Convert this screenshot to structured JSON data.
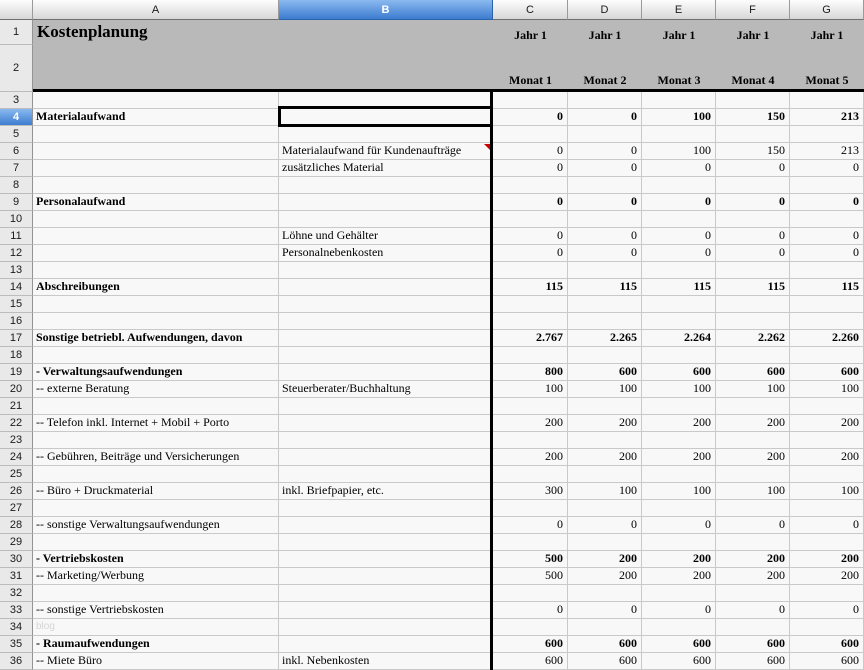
{
  "header": {
    "title": "Kostenplanung",
    "row_numbers": [
      "1",
      "2"
    ],
    "year_labels": [
      "Jahr 1",
      "Jahr 1",
      "Jahr 1",
      "Jahr 1",
      "Jahr 1"
    ],
    "month_labels": [
      "Monat 1",
      "Monat 2",
      "Monat 3",
      "Monat 4",
      "Monat 5"
    ]
  },
  "columns": [
    "A",
    "B",
    "C",
    "D",
    "E",
    "F",
    "G"
  ],
  "selection": {
    "column": "B",
    "row": "4",
    "cell": "B4"
  },
  "colors": {
    "selected_header_blue": "#3d7cd0",
    "title_band_gray": "#b9b9b9",
    "comment_marker_red": "#cc0000",
    "grid_line": "#c9c9c9",
    "cell_background": "#f8f8f8",
    "selection_border": "#000000"
  },
  "grid": {
    "value_columns": [
      "C",
      "D",
      "E",
      "F",
      "G"
    ],
    "rows": [
      {
        "n": "3",
        "a": "",
        "b": "",
        "v": [
          "",
          "",
          "",
          "",
          ""
        ]
      },
      {
        "n": "4",
        "a": "Materialaufwand",
        "bold": true,
        "b": "",
        "v": [
          "0",
          "0",
          "100",
          "150",
          "213"
        ]
      },
      {
        "n": "5",
        "a": "",
        "b": "",
        "v": [
          "",
          "",
          "",
          "",
          ""
        ]
      },
      {
        "n": "6",
        "a": "",
        "b": "Materialaufwand für Kundenaufträge",
        "comment": true,
        "v": [
          "0",
          "0",
          "100",
          "150",
          "213"
        ]
      },
      {
        "n": "7",
        "a": "",
        "b": "zusätzliches Material",
        "v": [
          "0",
          "0",
          "0",
          "0",
          "0"
        ]
      },
      {
        "n": "8",
        "a": "",
        "b": "",
        "v": [
          "",
          "",
          "",
          "",
          ""
        ]
      },
      {
        "n": "9",
        "a": "Personalaufwand",
        "bold": true,
        "b": "",
        "v": [
          "0",
          "0",
          "0",
          "0",
          "0"
        ]
      },
      {
        "n": "10",
        "a": "",
        "b": "",
        "v": [
          "",
          "",
          "",
          "",
          ""
        ]
      },
      {
        "n": "11",
        "a": "",
        "b": "Löhne und Gehälter",
        "v": [
          "0",
          "0",
          "0",
          "0",
          "0"
        ]
      },
      {
        "n": "12",
        "a": "",
        "b": "Personalnebenkosten",
        "v": [
          "0",
          "0",
          "0",
          "0",
          "0"
        ]
      },
      {
        "n": "13",
        "a": "",
        "b": "",
        "v": [
          "",
          "",
          "",
          "",
          ""
        ]
      },
      {
        "n": "14",
        "a": "Abschreibungen",
        "bold": true,
        "b": "",
        "v": [
          "115",
          "115",
          "115",
          "115",
          "115"
        ]
      },
      {
        "n": "15",
        "a": "",
        "b": "",
        "v": [
          "",
          "",
          "",
          "",
          ""
        ]
      },
      {
        "n": "16",
        "a": "",
        "b": "",
        "v": [
          "",
          "",
          "",
          "",
          ""
        ]
      },
      {
        "n": "17",
        "a": "Sonstige betriebl. Aufwendungen, davon",
        "bold": true,
        "b": "",
        "v": [
          "2.767",
          "2.265",
          "2.264",
          "2.262",
          "2.260"
        ]
      },
      {
        "n": "18",
        "a": "",
        "b": "",
        "v": [
          "",
          "",
          "",
          "",
          ""
        ]
      },
      {
        "n": "19",
        "a": "- Verwaltungsaufwendungen",
        "bold": true,
        "b": "",
        "v": [
          "800",
          "600",
          "600",
          "600",
          "600"
        ]
      },
      {
        "n": "20",
        "a": "-- externe Beratung",
        "b": "Steuerberater/Buchhaltung",
        "v": [
          "100",
          "100",
          "100",
          "100",
          "100"
        ]
      },
      {
        "n": "21",
        "a": "",
        "b": "",
        "v": [
          "",
          "",
          "",
          "",
          ""
        ]
      },
      {
        "n": "22",
        "a": "-- Telefon inkl. Internet + Mobil + Porto",
        "b": "",
        "v": [
          "200",
          "200",
          "200",
          "200",
          "200"
        ]
      },
      {
        "n": "23",
        "a": "",
        "b": "",
        "v": [
          "",
          "",
          "",
          "",
          ""
        ]
      },
      {
        "n": "24",
        "a": "-- Gebühren, Beiträge und Versicherungen",
        "b": "",
        "v": [
          "200",
          "200",
          "200",
          "200",
          "200"
        ]
      },
      {
        "n": "25",
        "a": "",
        "b": "",
        "v": [
          "",
          "",
          "",
          "",
          ""
        ]
      },
      {
        "n": "26",
        "a": "-- Büro + Druckmaterial",
        "b": "inkl. Briefpapier, etc.",
        "v": [
          "300",
          "100",
          "100",
          "100",
          "100"
        ]
      },
      {
        "n": "27",
        "a": "",
        "b": "",
        "v": [
          "",
          "",
          "",
          "",
          ""
        ]
      },
      {
        "n": "28",
        "a": "-- sonstige Verwaltungsaufwendungen",
        "b": "",
        "v": [
          "0",
          "0",
          "0",
          "0",
          "0"
        ]
      },
      {
        "n": "29",
        "a": "",
        "b": "",
        "v": [
          "",
          "",
          "",
          "",
          ""
        ]
      },
      {
        "n": "30",
        "a": "- Vertriebskosten",
        "bold": true,
        "b": "",
        "v": [
          "500",
          "200",
          "200",
          "200",
          "200"
        ]
      },
      {
        "n": "31",
        "a": "-- Marketing/Werbung",
        "b": "",
        "v": [
          "500",
          "200",
          "200",
          "200",
          "200"
        ]
      },
      {
        "n": "32",
        "a": "",
        "b": "",
        "v": [
          "",
          "",
          "",
          "",
          ""
        ]
      },
      {
        "n": "33",
        "a": "-- sonstige Vertriebskosten",
        "b": "",
        "v": [
          "0",
          "0",
          "0",
          "0",
          "0"
        ]
      },
      {
        "n": "34",
        "a": "blog",
        "wm": true,
        "b": "",
        "v": [
          "",
          "",
          "",
          "",
          ""
        ]
      },
      {
        "n": "35",
        "a": "- Raumaufwendungen",
        "bold": true,
        "b": "",
        "v": [
          "600",
          "600",
          "600",
          "600",
          "600"
        ]
      },
      {
        "n": "36",
        "a": "-- Miete Büro",
        "b": "inkl. Nebenkosten",
        "v": [
          "600",
          "600",
          "600",
          "600",
          "600"
        ]
      }
    ]
  }
}
